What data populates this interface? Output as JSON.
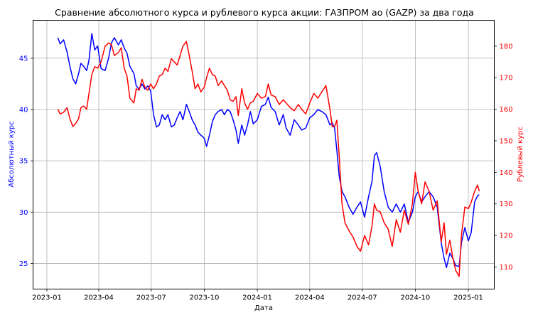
{
  "chart_data": {
    "type": "line",
    "title": "Сравнение абсолютного курса и рублевого курса акции: ГАЗПРОМ ао (GAZP) за два года",
    "xlabel": "Дата",
    "y_left_label": "Абсолютный курс",
    "y_right_label": "Рублевый курс",
    "grid": true,
    "colors": {
      "left": "#0000ff",
      "right": "#ff0000"
    },
    "x_ticks": [
      "2023-01",
      "2023-04",
      "2023-07",
      "2023-10",
      "2024-01",
      "2024-04",
      "2024-07",
      "2024-10",
      "2025-01"
    ],
    "y_left_ticks": [
      25,
      30,
      35,
      40,
      45
    ],
    "y_right_ticks": [
      110,
      120,
      130,
      140,
      150,
      160,
      170,
      180
    ],
    "x_range": [
      "2022-12-08",
      "2025-02-15"
    ],
    "y_left_range": [
      22.5,
      48.7
    ],
    "y_right_range": [
      103,
      188.2
    ],
    "series": [
      {
        "axis": "left",
        "points": [
          [
            "2023-01-20",
            47.0
          ],
          [
            "2023-01-24",
            46.4
          ],
          [
            "2023-01-30",
            46.8
          ],
          [
            "2023-02-05",
            45.6
          ],
          [
            "2023-02-10",
            44.2
          ],
          [
            "2023-02-15",
            43.0
          ],
          [
            "2023-02-20",
            42.5
          ],
          [
            "2023-02-25",
            43.5
          ],
          [
            "2023-03-01",
            44.5
          ],
          [
            "2023-03-06",
            44.2
          ],
          [
            "2023-03-11",
            43.8
          ],
          [
            "2023-03-15",
            44.8
          ],
          [
            "2023-03-20",
            47.4
          ],
          [
            "2023-03-25",
            45.8
          ],
          [
            "2023-03-30",
            46.2
          ],
          [
            "2023-04-05",
            44.0
          ],
          [
            "2023-04-12",
            43.8
          ],
          [
            "2023-04-18",
            45.0
          ],
          [
            "2023-04-23",
            46.5
          ],
          [
            "2023-04-28",
            47.0
          ],
          [
            "2023-05-05",
            46.3
          ],
          [
            "2023-05-10",
            46.8
          ],
          [
            "2023-05-15",
            46.0
          ],
          [
            "2023-05-20",
            45.5
          ],
          [
            "2023-05-25",
            44.2
          ],
          [
            "2023-06-01",
            43.5
          ],
          [
            "2023-06-05",
            42.3
          ],
          [
            "2023-06-10",
            42.0
          ],
          [
            "2023-06-15",
            42.5
          ],
          [
            "2023-06-20",
            42.0
          ],
          [
            "2023-06-25",
            42.3
          ],
          [
            "2023-06-30",
            41.8
          ],
          [
            "2023-07-05",
            39.5
          ],
          [
            "2023-07-10",
            38.3
          ],
          [
            "2023-07-15",
            38.5
          ],
          [
            "2023-07-20",
            39.5
          ],
          [
            "2023-07-25",
            39.0
          ],
          [
            "2023-07-30",
            39.5
          ],
          [
            "2023-08-05",
            38.3
          ],
          [
            "2023-08-10",
            38.5
          ],
          [
            "2023-08-15",
            39.2
          ],
          [
            "2023-08-20",
            39.8
          ],
          [
            "2023-08-25",
            39.0
          ],
          [
            "2023-08-31",
            40.5
          ],
          [
            "2023-09-05",
            39.8
          ],
          [
            "2023-09-10",
            39.0
          ],
          [
            "2023-09-15",
            38.5
          ],
          [
            "2023-09-20",
            37.8
          ],
          [
            "2023-09-25",
            37.5
          ],
          [
            "2023-10-01",
            37.2
          ],
          [
            "2023-10-05",
            36.4
          ],
          [
            "2023-10-10",
            37.5
          ],
          [
            "2023-10-15",
            38.8
          ],
          [
            "2023-10-20",
            39.5
          ],
          [
            "2023-10-25",
            39.8
          ],
          [
            "2023-10-31",
            40.0
          ],
          [
            "2023-11-05",
            39.5
          ],
          [
            "2023-11-10",
            40.0
          ],
          [
            "2023-11-15",
            39.8
          ],
          [
            "2023-11-20",
            39.0
          ],
          [
            "2023-11-25",
            38.0
          ],
          [
            "2023-11-29",
            36.7
          ],
          [
            "2023-12-05",
            38.5
          ],
          [
            "2023-12-10",
            37.5
          ],
          [
            "2023-12-15",
            38.5
          ],
          [
            "2023-12-20",
            39.8
          ],
          [
            "2023-12-25",
            38.6
          ],
          [
            "2024-01-01",
            39.0
          ],
          [
            "2024-01-08",
            40.3
          ],
          [
            "2024-01-15",
            40.5
          ],
          [
            "2024-01-20",
            41.2
          ],
          [
            "2024-01-25",
            40.2
          ],
          [
            "2024-02-01",
            39.8
          ],
          [
            "2024-02-08",
            38.5
          ],
          [
            "2024-02-15",
            39.5
          ],
          [
            "2024-02-20",
            38.2
          ],
          [
            "2024-02-27",
            37.5
          ],
          [
            "2024-03-05",
            39.0
          ],
          [
            "2024-03-12",
            38.5
          ],
          [
            "2024-03-18",
            38.0
          ],
          [
            "2024-03-25",
            38.2
          ],
          [
            "2024-04-01",
            39.2
          ],
          [
            "2024-04-08",
            39.5
          ],
          [
            "2024-04-15",
            40.0
          ],
          [
            "2024-04-22",
            39.8
          ],
          [
            "2024-04-29",
            39.5
          ],
          [
            "2024-05-06",
            38.5
          ],
          [
            "2024-05-10",
            38.7
          ],
          [
            "2024-05-14",
            38.2
          ],
          [
            "2024-05-18",
            36.0
          ],
          [
            "2024-05-22",
            33.5
          ],
          [
            "2024-05-27",
            32.0
          ],
          [
            "2024-06-01",
            31.5
          ],
          [
            "2024-06-08",
            30.5
          ],
          [
            "2024-06-15",
            29.8
          ],
          [
            "2024-06-22",
            30.5
          ],
          [
            "2024-06-28",
            31.0
          ],
          [
            "2024-07-05",
            29.5
          ],
          [
            "2024-07-12",
            31.5
          ],
          [
            "2024-07-18",
            33.0
          ],
          [
            "2024-07-22",
            35.5
          ],
          [
            "2024-07-26",
            35.8
          ],
          [
            "2024-08-01",
            34.5
          ],
          [
            "2024-08-08",
            32.0
          ],
          [
            "2024-08-15",
            30.5
          ],
          [
            "2024-08-22",
            30.0
          ],
          [
            "2024-08-29",
            30.8
          ],
          [
            "2024-09-05",
            30.0
          ],
          [
            "2024-09-12",
            30.8
          ],
          [
            "2024-09-19",
            29.0
          ],
          [
            "2024-09-26",
            30.0
          ],
          [
            "2024-10-01",
            31.5
          ],
          [
            "2024-10-06",
            32.0
          ],
          [
            "2024-10-12",
            31.0
          ],
          [
            "2024-10-18",
            31.5
          ],
          [
            "2024-10-25",
            32.0
          ],
          [
            "2024-11-01",
            31.5
          ],
          [
            "2024-11-08",
            30.5
          ],
          [
            "2024-11-15",
            27.0
          ],
          [
            "2024-11-20",
            25.5
          ],
          [
            "2024-11-24",
            24.6
          ],
          [
            "2024-11-30",
            26.0
          ],
          [
            "2024-12-05",
            25.5
          ],
          [
            "2024-12-10",
            24.8
          ],
          [
            "2024-12-16",
            24.7
          ],
          [
            "2024-12-20",
            27.0
          ],
          [
            "2024-12-26",
            28.5
          ],
          [
            "2025-01-01",
            27.2
          ],
          [
            "2025-01-06",
            28.0
          ],
          [
            "2025-01-12",
            31.0
          ],
          [
            "2025-01-17",
            31.6
          ],
          [
            "2025-01-20",
            31.7
          ]
        ]
      },
      {
        "axis": "right",
        "points": [
          [
            "2023-01-20",
            160.0
          ],
          [
            "2023-01-24",
            158.5
          ],
          [
            "2023-01-30",
            159.0
          ],
          [
            "2023-02-05",
            160.5
          ],
          [
            "2023-02-10",
            157.0
          ],
          [
            "2023-02-15",
            154.5
          ],
          [
            "2023-02-20",
            155.5
          ],
          [
            "2023-02-25",
            157.0
          ],
          [
            "2023-03-01",
            160.5
          ],
          [
            "2023-03-06",
            161.0
          ],
          [
            "2023-03-11",
            160.0
          ],
          [
            "2023-03-15",
            165.0
          ],
          [
            "2023-03-20",
            171.0
          ],
          [
            "2023-03-25",
            173.5
          ],
          [
            "2023-03-30",
            173.0
          ],
          [
            "2023-04-05",
            175.0
          ],
          [
            "2023-04-12",
            180.0
          ],
          [
            "2023-04-18",
            181.0
          ],
          [
            "2023-04-23",
            180.5
          ],
          [
            "2023-04-28",
            177.0
          ],
          [
            "2023-05-05",
            178.0
          ],
          [
            "2023-05-10",
            179.5
          ],
          [
            "2023-05-15",
            173.0
          ],
          [
            "2023-05-20",
            170.5
          ],
          [
            "2023-05-25",
            163.5
          ],
          [
            "2023-06-01",
            162.0
          ],
          [
            "2023-06-05",
            166.5
          ],
          [
            "2023-06-10",
            166.0
          ],
          [
            "2023-06-15",
            169.5
          ],
          [
            "2023-06-20",
            167.0
          ],
          [
            "2023-06-25",
            166.0
          ],
          [
            "2023-06-30",
            168.0
          ],
          [
            "2023-07-05",
            166.5
          ],
          [
            "2023-07-10",
            168.0
          ],
          [
            "2023-07-15",
            170.5
          ],
          [
            "2023-07-20",
            171.0
          ],
          [
            "2023-07-25",
            173.0
          ],
          [
            "2023-07-30",
            172.0
          ],
          [
            "2023-08-05",
            176.0
          ],
          [
            "2023-08-10",
            175.0
          ],
          [
            "2023-08-15",
            174.0
          ],
          [
            "2023-08-20",
            177.0
          ],
          [
            "2023-08-25",
            180.0
          ],
          [
            "2023-08-31",
            181.5
          ],
          [
            "2023-09-05",
            177.0
          ],
          [
            "2023-09-10",
            172.0
          ],
          [
            "2023-09-15",
            166.5
          ],
          [
            "2023-09-20",
            168.0
          ],
          [
            "2023-09-25",
            165.5
          ],
          [
            "2023-10-01",
            167.0
          ],
          [
            "2023-10-05",
            170.0
          ],
          [
            "2023-10-10",
            173.0
          ],
          [
            "2023-10-15",
            171.0
          ],
          [
            "2023-10-20",
            170.5
          ],
          [
            "2023-10-25",
            167.5
          ],
          [
            "2023-10-31",
            169.0
          ],
          [
            "2023-11-05",
            167.5
          ],
          [
            "2023-11-10",
            166.0
          ],
          [
            "2023-11-15",
            163.0
          ],
          [
            "2023-11-20",
            162.5
          ],
          [
            "2023-11-25",
            164.0
          ],
          [
            "2023-11-29",
            158.0
          ],
          [
            "2023-12-05",
            166.5
          ],
          [
            "2023-12-10",
            162.0
          ],
          [
            "2023-12-15",
            160.0
          ],
          [
            "2023-12-20",
            162.0
          ],
          [
            "2023-12-25",
            162.5
          ],
          [
            "2024-01-01",
            165.0
          ],
          [
            "2024-01-08",
            163.5
          ],
          [
            "2024-01-15",
            164.0
          ],
          [
            "2024-01-20",
            168.0
          ],
          [
            "2024-01-25",
            164.5
          ],
          [
            "2024-02-01",
            164.0
          ],
          [
            "2024-02-08",
            161.5
          ],
          [
            "2024-02-15",
            163.0
          ],
          [
            "2024-02-20",
            162.0
          ],
          [
            "2024-02-27",
            160.5
          ],
          [
            "2024-03-05",
            159.5
          ],
          [
            "2024-03-12",
            161.5
          ],
          [
            "2024-03-18",
            160.0
          ],
          [
            "2024-03-25",
            158.5
          ],
          [
            "2024-04-01",
            162.0
          ],
          [
            "2024-04-08",
            165.0
          ],
          [
            "2024-04-15",
            163.5
          ],
          [
            "2024-04-22",
            165.5
          ],
          [
            "2024-04-29",
            167.5
          ],
          [
            "2024-05-06",
            160.0
          ],
          [
            "2024-05-10",
            154.5
          ],
          [
            "2024-05-14",
            154.5
          ],
          [
            "2024-05-18",
            156.5
          ],
          [
            "2024-05-22",
            145.0
          ],
          [
            "2024-05-27",
            130.0
          ],
          [
            "2024-06-01",
            124.0
          ],
          [
            "2024-06-08",
            121.5
          ],
          [
            "2024-06-15",
            119.5
          ],
          [
            "2024-06-22",
            116.5
          ],
          [
            "2024-06-28",
            115.0
          ],
          [
            "2024-07-05",
            120.0
          ],
          [
            "2024-07-12",
            117.0
          ],
          [
            "2024-07-18",
            123.0
          ],
          [
            "2024-07-22",
            130.0
          ],
          [
            "2024-07-26",
            128.0
          ],
          [
            "2024-08-01",
            127.5
          ],
          [
            "2024-08-08",
            124.0
          ],
          [
            "2024-08-15",
            122.0
          ],
          [
            "2024-08-22",
            116.5
          ],
          [
            "2024-08-29",
            125.0
          ],
          [
            "2024-09-05",
            121.0
          ],
          [
            "2024-09-12",
            128.0
          ],
          [
            "2024-09-19",
            123.5
          ],
          [
            "2024-09-26",
            130.0
          ],
          [
            "2024-10-01",
            140.0
          ],
          [
            "2024-10-06",
            134.0
          ],
          [
            "2024-10-12",
            130.0
          ],
          [
            "2024-10-18",
            137.0
          ],
          [
            "2024-10-25",
            134.0
          ],
          [
            "2024-11-01",
            128.0
          ],
          [
            "2024-11-08",
            131.0
          ],
          [
            "2024-11-15",
            118.0
          ],
          [
            "2024-11-20",
            124.0
          ],
          [
            "2024-11-24",
            114.0
          ],
          [
            "2024-11-30",
            118.5
          ],
          [
            "2024-12-05",
            113.0
          ],
          [
            "2024-12-10",
            109.0
          ],
          [
            "2024-12-16",
            107.0
          ],
          [
            "2024-12-20",
            120.0
          ],
          [
            "2024-12-26",
            129.0
          ],
          [
            "2025-01-01",
            128.5
          ],
          [
            "2025-01-06",
            130.5
          ],
          [
            "2025-01-12",
            134.0
          ],
          [
            "2025-01-17",
            136.0
          ],
          [
            "2025-01-20",
            134.0
          ]
        ]
      }
    ]
  }
}
